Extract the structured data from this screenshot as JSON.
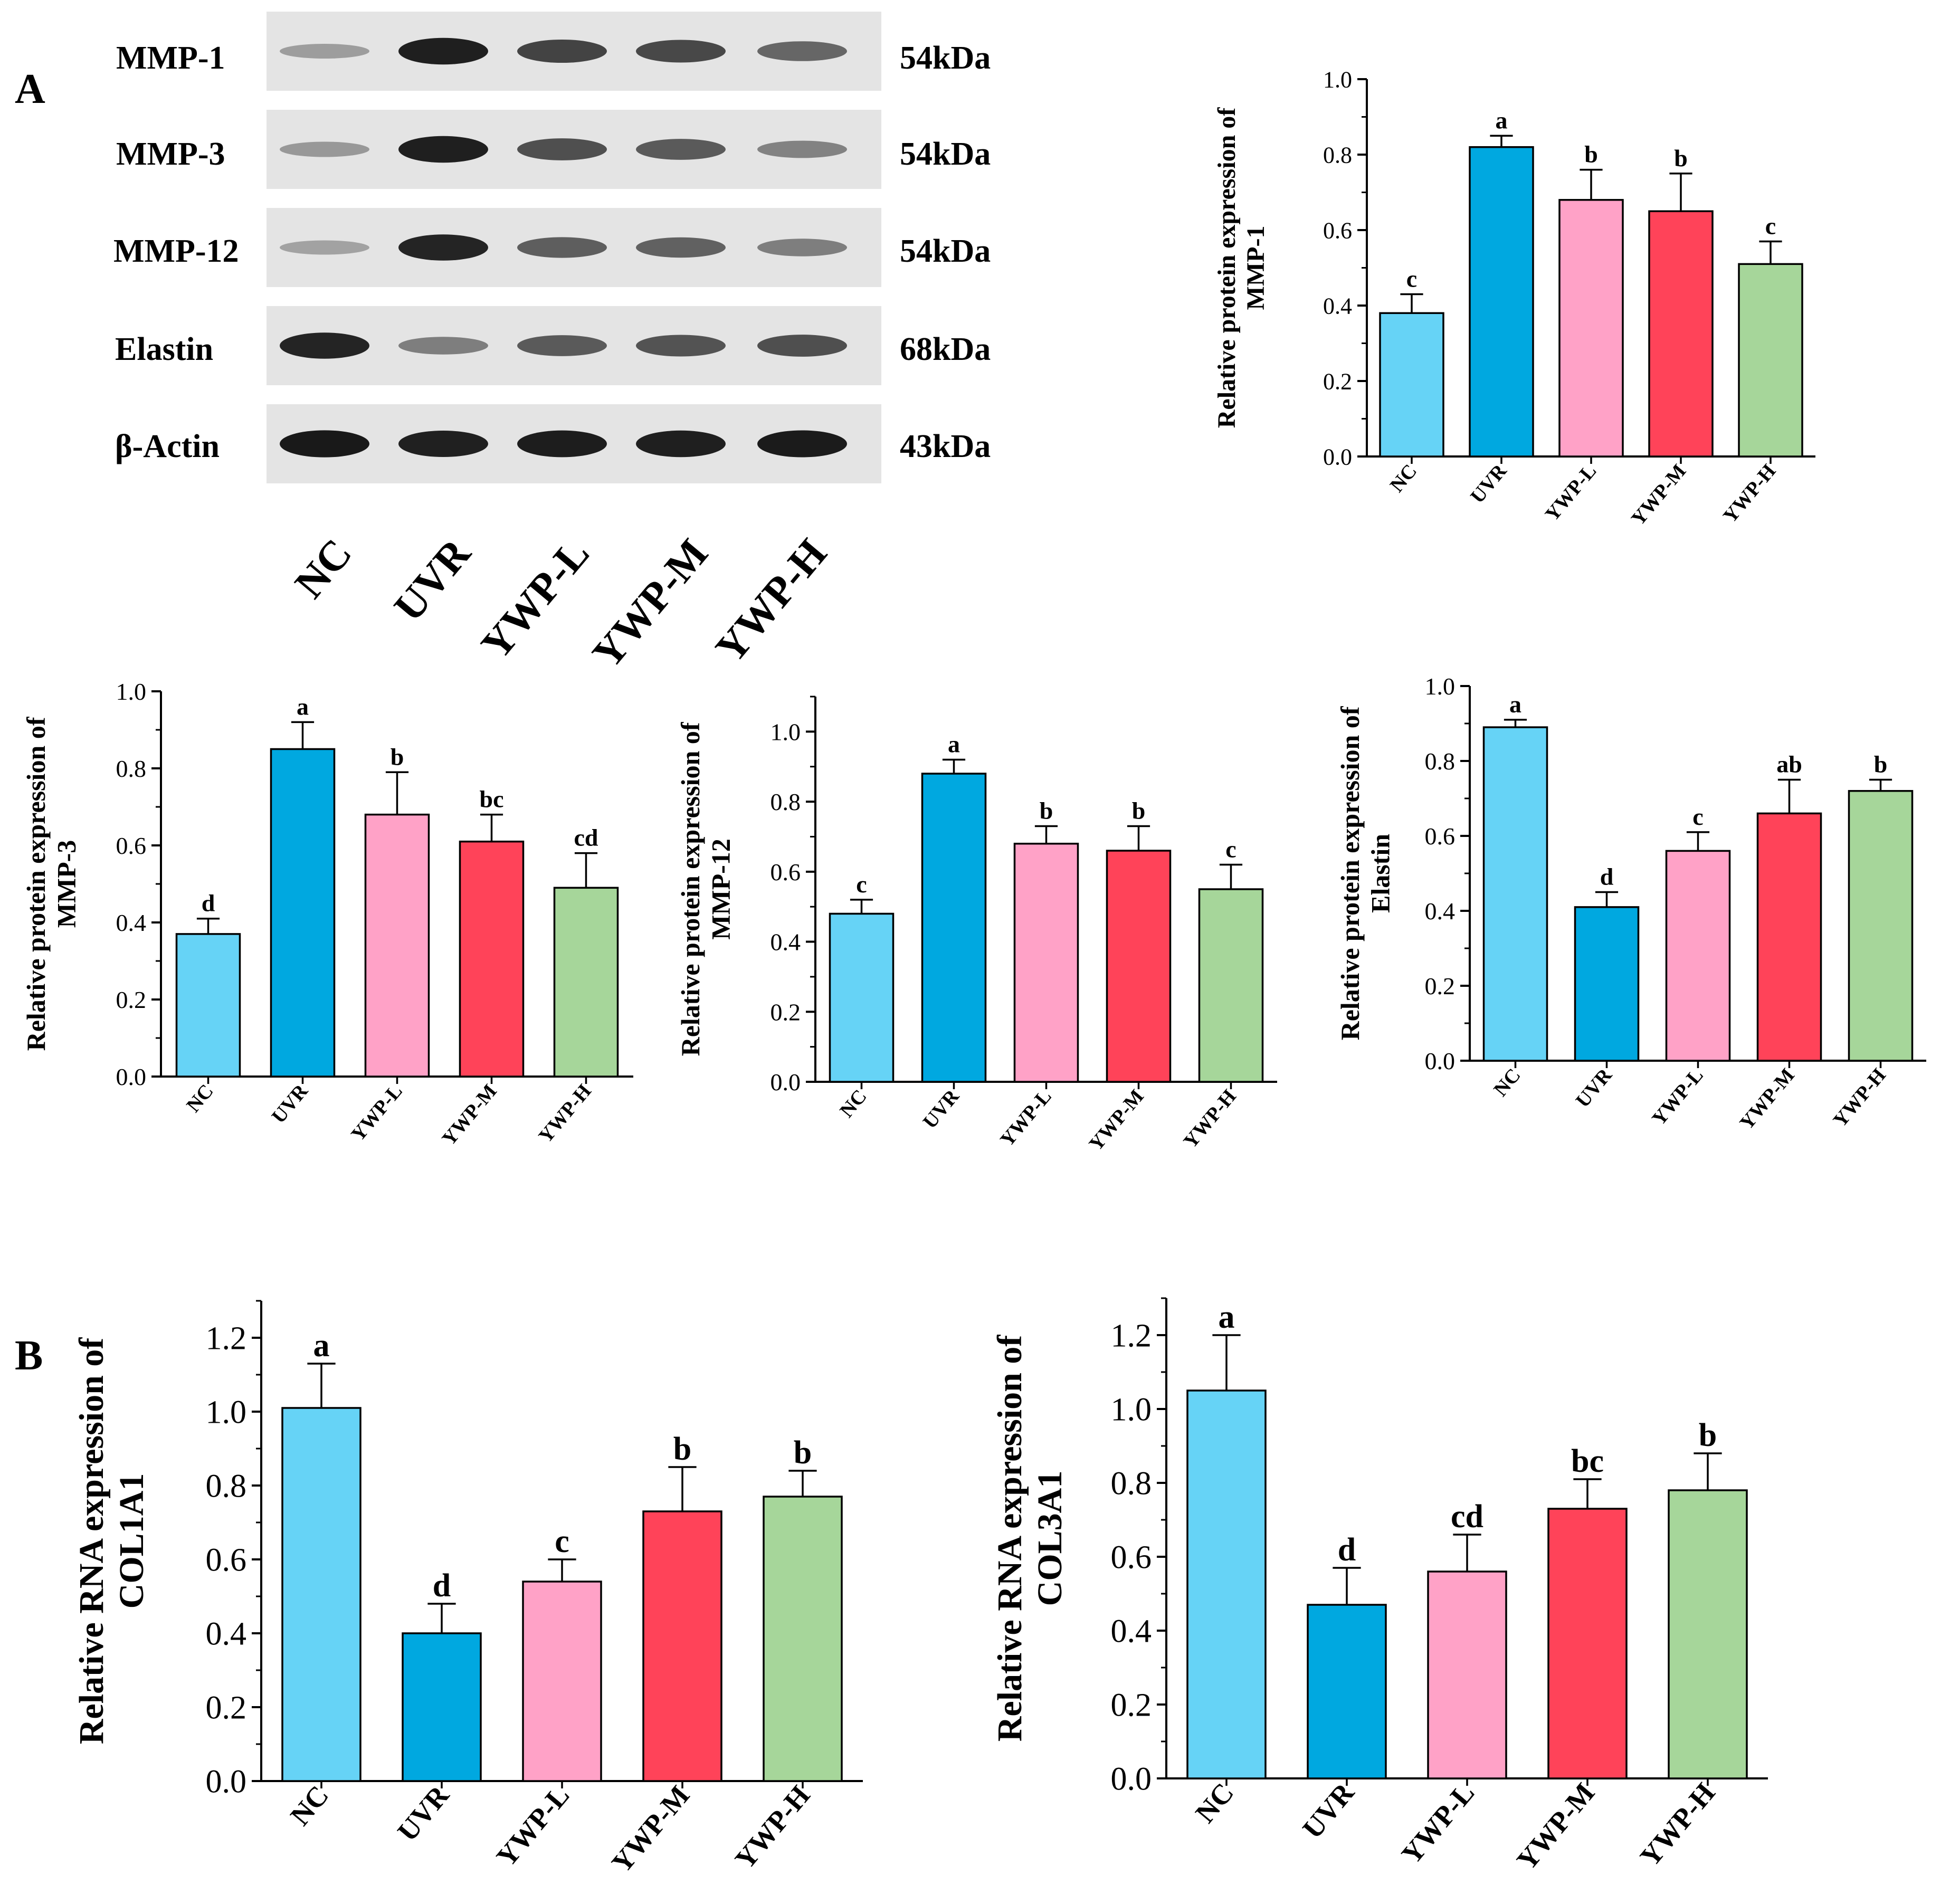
{
  "panel_labels": {
    "a": "A",
    "b": "B"
  },
  "blot": {
    "rows": [
      {
        "protein": "MMP-1",
        "kda": "54kDa"
      },
      {
        "protein": "MMP-3",
        "kda": "54kDa"
      },
      {
        "protein": "MMP-12",
        "kda": "54kDa"
      },
      {
        "protein": "Elastin",
        "kda": "68kDa"
      },
      {
        "protein": "β-Actin",
        "kda": "43kDa"
      }
    ],
    "lanes": [
      "NC",
      "UVR",
      "YWP-L",
      "YWP-M",
      "YWP-H"
    ],
    "band_intensity": [
      [
        0.25,
        0.95,
        0.75,
        0.72,
        0.55
      ],
      [
        0.28,
        0.95,
        0.68,
        0.62,
        0.4
      ],
      [
        0.22,
        0.92,
        0.6,
        0.58,
        0.42
      ],
      [
        0.92,
        0.42,
        0.62,
        0.66,
        0.68
      ],
      [
        0.98,
        0.94,
        0.96,
        0.95,
        0.97
      ]
    ]
  },
  "colors": {
    "NC": "#66D3F6",
    "UVR": "#00A8E0",
    "YWP-L": "#FFA2C7",
    "YWP-M": "#FF4359",
    "YWP-H": "#A6D69A"
  },
  "chart_data": [
    {
      "id": "mmp1",
      "type": "bar",
      "categories": [
        "NC",
        "UVR",
        "YWP-L",
        "YWP-M",
        "YWP-H"
      ],
      "values": [
        0.38,
        0.82,
        0.68,
        0.65,
        0.51
      ],
      "errors": [
        0.05,
        0.03,
        0.08,
        0.1,
        0.06
      ],
      "letters": [
        "c",
        "a",
        "b",
        "b",
        "c"
      ],
      "ylabel_lines": [
        "Relative protein expression of",
        "MMP-1"
      ],
      "ylim": [
        0,
        1.0
      ],
      "yticks": [
        "0.0",
        "0.2",
        "0.4",
        "0.6",
        "0.8",
        "1.0"
      ]
    },
    {
      "id": "mmp3",
      "type": "bar",
      "categories": [
        "NC",
        "UVR",
        "YWP-L",
        "YWP-M",
        "YWP-H"
      ],
      "values": [
        0.37,
        0.85,
        0.68,
        0.61,
        0.49
      ],
      "errors": [
        0.04,
        0.07,
        0.11,
        0.07,
        0.09
      ],
      "letters": [
        "d",
        "a",
        "b",
        "bc",
        "cd"
      ],
      "ylabel_lines": [
        "Relative protein expression of",
        "MMP-3"
      ],
      "ylim": [
        0,
        1.0
      ],
      "yticks": [
        "0.0",
        "0.2",
        "0.4",
        "0.6",
        "0.8",
        "1.0"
      ]
    },
    {
      "id": "mmp12",
      "type": "bar",
      "categories": [
        "NC",
        "UVR",
        "YWP-L",
        "YWP-M",
        "YWP-H"
      ],
      "values": [
        0.48,
        0.88,
        0.68,
        0.66,
        0.55
      ],
      "errors": [
        0.04,
        0.04,
        0.05,
        0.07,
        0.07
      ],
      "letters": [
        "c",
        "a",
        "b",
        "b",
        "c"
      ],
      "ylabel_lines": [
        "Relative protein expression of",
        "MMP-12"
      ],
      "ylim": [
        0,
        1.1
      ],
      "yticks": [
        "0.0",
        "0.2",
        "0.4",
        "0.6",
        "0.8",
        "1.0"
      ]
    },
    {
      "id": "elastin",
      "type": "bar",
      "categories": [
        "NC",
        "UVR",
        "YWP-L",
        "YWP-M",
        "YWP-H"
      ],
      "values": [
        0.89,
        0.41,
        0.56,
        0.66,
        0.72
      ],
      "errors": [
        0.02,
        0.04,
        0.05,
        0.09,
        0.03
      ],
      "letters": [
        "a",
        "d",
        "c",
        "ab",
        "b"
      ],
      "ylabel_lines": [
        "Relative protein expression of",
        "Elastin"
      ],
      "ylim": [
        0,
        1.0
      ],
      "yticks": [
        "0.0",
        "0.2",
        "0.4",
        "0.6",
        "0.8",
        "1.0"
      ]
    },
    {
      "id": "col1a1",
      "type": "bar",
      "categories": [
        "NC",
        "UVR",
        "YWP-L",
        "YWP-M",
        "YWP-H"
      ],
      "values": [
        1.01,
        0.4,
        0.54,
        0.73,
        0.77
      ],
      "errors": [
        0.12,
        0.08,
        0.06,
        0.12,
        0.07
      ],
      "letters": [
        "a",
        "d",
        "c",
        "b",
        "b"
      ],
      "ylabel_lines": [
        "Relative RNA expression of",
        "COL1A1"
      ],
      "ylim": [
        0,
        1.3
      ],
      "yticks": [
        "0.0",
        "0.2",
        "0.4",
        "0.6",
        "0.8",
        "1.0",
        "1.2"
      ]
    },
    {
      "id": "col3a1",
      "type": "bar",
      "categories": [
        "NC",
        "UVR",
        "YWP-L",
        "YWP-M",
        "YWP-H"
      ],
      "values": [
        1.05,
        0.47,
        0.56,
        0.73,
        0.78
      ],
      "errors": [
        0.15,
        0.1,
        0.1,
        0.08,
        0.1
      ],
      "letters": [
        "a",
        "d",
        "cd",
        "bc",
        "b"
      ],
      "ylabel_lines": [
        "Relative RNA expression of",
        "COL3A1"
      ],
      "ylim": [
        0,
        1.3
      ],
      "yticks": [
        "0.0",
        "0.2",
        "0.4",
        "0.6",
        "0.8",
        "1.0",
        "1.2"
      ]
    }
  ]
}
